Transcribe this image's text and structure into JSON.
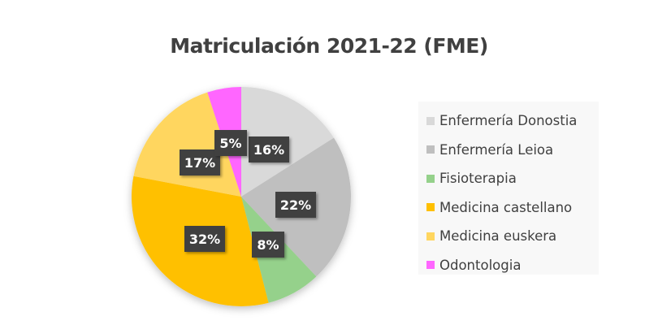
{
  "chart_data": {
    "type": "pie",
    "title": "Matriculación 2021-22 (FME)",
    "categories": [
      "Enfermería Donostia",
      "Enfermería Leioa",
      "Fisioterapia",
      "Medicina castellano",
      "Medicina euskera",
      "Odontologia"
    ],
    "values": [
      16,
      22,
      8,
      32,
      17,
      5
    ],
    "labels": [
      "16%",
      "22%",
      "8%",
      "32%",
      "17%",
      "5%"
    ],
    "colors": [
      "#d9d9d9",
      "#bfbfbf",
      "#95d18b",
      "#ffc000",
      "#ffd65f",
      "#ff66ff"
    ],
    "start_angle": "top, clockwise",
    "legend_position": "right",
    "label_style": {
      "background": "#404040",
      "text": "#ffffff"
    }
  }
}
